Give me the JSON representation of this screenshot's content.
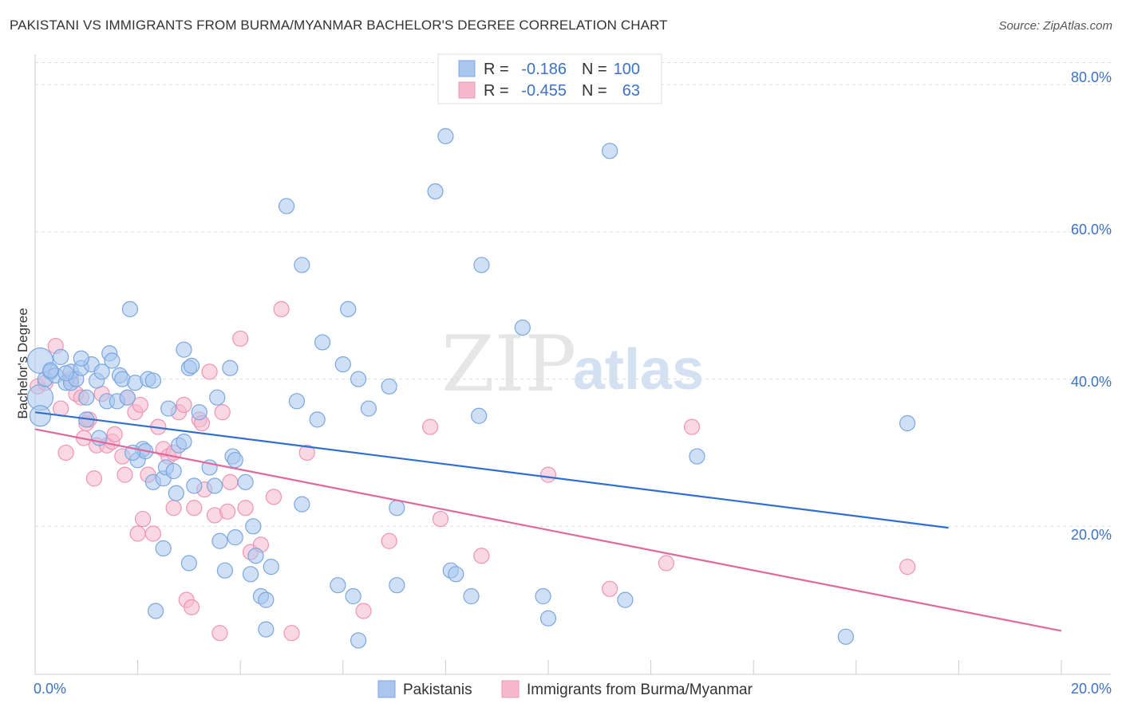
{
  "title": "PAKISTANI VS IMMIGRANTS FROM BURMA/MYANMAR BACHELOR'S DEGREE CORRELATION CHART",
  "source": "Source: ZipAtlas.com",
  "watermark": {
    "part1": "ZIP",
    "part2": "atlas"
  },
  "legend": {
    "r_label": "R =",
    "n_label": "N =",
    "rows": [
      {
        "r": "-0.186",
        "n": "100"
      },
      {
        "r": "-0.455",
        "n": "63"
      }
    ]
  },
  "bottom_legend": [
    "Pakistanis",
    "Immigrants from Burma/Myanmar"
  ],
  "colors": {
    "blue_fill": "#a8c6ee",
    "blue_stroke": "#7aa6e0",
    "blue_line": "#2f6fd0",
    "pink_fill": "#f5b8cc",
    "pink_stroke": "#ef94b4",
    "pink_line": "#e0689a",
    "grid": "#dddddd",
    "tick_text": "#3d72c4"
  },
  "chart_data": {
    "type": "scatter",
    "title": "PAKISTANI VS IMMIGRANTS FROM BURMA/MYANMAR BACHELOR'S DEGREE CORRELATION CHART",
    "xlabel": "",
    "ylabel": "Bachelor's Degree",
    "xlim": [
      0,
      20
    ],
    "ylim": [
      0,
      83
    ],
    "x_tick_labels": [
      "0.0%",
      "20.0%"
    ],
    "y_ticks": [
      20,
      40,
      60,
      80
    ],
    "y_tick_labels": [
      "20.0%",
      "40.0%",
      "60.0%",
      "80.0%"
    ],
    "grid": true,
    "series": [
      {
        "name": "Pakistanis",
        "R": -0.186,
        "N": 100,
        "trend": {
          "x": [
            0,
            17.8
          ],
          "y": [
            35.5,
            19.8
          ]
        },
        "points": [
          [
            0.1,
            42.5
          ],
          [
            0.1,
            37.5
          ],
          [
            0.1,
            35
          ],
          [
            0.2,
            40
          ],
          [
            0.3,
            41
          ],
          [
            0.4,
            40.5
          ],
          [
            0.6,
            39.5
          ],
          [
            0.5,
            43
          ],
          [
            0.7,
            39.5
          ],
          [
            0.7,
            41
          ],
          [
            0.8,
            40
          ],
          [
            0.9,
            41.5
          ],
          [
            1.1,
            42
          ],
          [
            1.2,
            39.8
          ],
          [
            1.3,
            41
          ],
          [
            1.4,
            37
          ],
          [
            1.45,
            43.5
          ],
          [
            1.5,
            42.5
          ],
          [
            1.6,
            37
          ],
          [
            1.65,
            40.5
          ],
          [
            1.7,
            40
          ],
          [
            1.8,
            37.5
          ],
          [
            1.85,
            49.5
          ],
          [
            1.95,
            39.5
          ],
          [
            2.2,
            40
          ],
          [
            2.3,
            39.8
          ],
          [
            2.1,
            30.5
          ],
          [
            2.0,
            29
          ],
          [
            2.15,
            30.2
          ],
          [
            2.3,
            26
          ],
          [
            2.35,
            8.5
          ],
          [
            2.5,
            26.5
          ],
          [
            2.55,
            28
          ],
          [
            2.6,
            36
          ],
          [
            2.7,
            27.5
          ],
          [
            2.75,
            24.5
          ],
          [
            2.8,
            31
          ],
          [
            2.9,
            31.5
          ],
          [
            2.9,
            44
          ],
          [
            3.0,
            41.5
          ],
          [
            3.05,
            41.8
          ],
          [
            2.5,
            17
          ],
          [
            3.1,
            25.5
          ],
          [
            3.2,
            35.5
          ],
          [
            3.4,
            28
          ],
          [
            3.5,
            25.5
          ],
          [
            3.55,
            37.5
          ],
          [
            3.6,
            18
          ],
          [
            3.7,
            14
          ],
          [
            3.8,
            41.5
          ],
          [
            3.85,
            29.5
          ],
          [
            3.9,
            29
          ],
          [
            3.9,
            18.5
          ],
          [
            4.1,
            26
          ],
          [
            4.2,
            13.5
          ],
          [
            4.25,
            20
          ],
          [
            4.3,
            16
          ],
          [
            4.4,
            10.5
          ],
          [
            4.5,
            10
          ],
          [
            4.6,
            14.5
          ],
          [
            4.5,
            6
          ],
          [
            4.9,
            63.5
          ],
          [
            5.1,
            37
          ],
          [
            5.2,
            55.5
          ],
          [
            5.2,
            23
          ],
          [
            5.5,
            34.5
          ],
          [
            5.6,
            45
          ],
          [
            5.9,
            12
          ],
          [
            6.0,
            42
          ],
          [
            6.1,
            49.5
          ],
          [
            6.2,
            10.5
          ],
          [
            6.3,
            40
          ],
          [
            6.3,
            4.5
          ],
          [
            6.5,
            36
          ],
          [
            6.9,
            39
          ],
          [
            7.05,
            22.5
          ],
          [
            7.05,
            12
          ],
          [
            7.8,
            65.5
          ],
          [
            8.0,
            73
          ],
          [
            8.1,
            14
          ],
          [
            8.2,
            13.5
          ],
          [
            8.5,
            10.5
          ],
          [
            8.65,
            35
          ],
          [
            8.7,
            55.5
          ],
          [
            9.5,
            47
          ],
          [
            9.9,
            10.5
          ],
          [
            10.0,
            7.5
          ],
          [
            11.2,
            71
          ],
          [
            11.5,
            10
          ],
          [
            12.9,
            29.5
          ],
          [
            15.8,
            5
          ],
          [
            17.0,
            34
          ],
          [
            1.0,
            34.5
          ],
          [
            1.25,
            32
          ],
          [
            1.9,
            30
          ],
          [
            1.0,
            37.5
          ],
          [
            3.0,
            15
          ],
          [
            0.6,
            40.8
          ],
          [
            0.9,
            42.8
          ],
          [
            0.3,
            41.2
          ]
        ]
      },
      {
        "name": "Immigrants from Burma/Myanmar",
        "R": -0.455,
        "N": 63,
        "trend": {
          "x": [
            0,
            20
          ],
          "y": [
            33.2,
            5.8
          ]
        },
        "points": [
          [
            0.05,
            39
          ],
          [
            0.2,
            39.5
          ],
          [
            0.4,
            44.5
          ],
          [
            0.5,
            36
          ],
          [
            0.6,
            30
          ],
          [
            0.7,
            40
          ],
          [
            0.8,
            38
          ],
          [
            0.9,
            37.5
          ],
          [
            0.95,
            32
          ],
          [
            1.0,
            34
          ],
          [
            1.05,
            34.5
          ],
          [
            1.15,
            26.5
          ],
          [
            1.2,
            31
          ],
          [
            1.3,
            38
          ],
          [
            1.4,
            31
          ],
          [
            1.5,
            31.5
          ],
          [
            1.55,
            32.5
          ],
          [
            1.7,
            29.5
          ],
          [
            1.75,
            27
          ],
          [
            1.8,
            37.5
          ],
          [
            1.95,
            35.5
          ],
          [
            2.0,
            19
          ],
          [
            2.05,
            36.5
          ],
          [
            2.1,
            21
          ],
          [
            2.2,
            27
          ],
          [
            2.3,
            19
          ],
          [
            2.4,
            33.5
          ],
          [
            2.5,
            30.5
          ],
          [
            2.6,
            29.5
          ],
          [
            2.7,
            30
          ],
          [
            2.8,
            35.5
          ],
          [
            2.9,
            36.5
          ],
          [
            2.95,
            10
          ],
          [
            3.05,
            9
          ],
          [
            3.1,
            22.5
          ],
          [
            3.2,
            34.5
          ],
          [
            3.25,
            34
          ],
          [
            3.3,
            25
          ],
          [
            3.4,
            41
          ],
          [
            3.5,
            21.5
          ],
          [
            3.6,
            5.5
          ],
          [
            3.65,
            35.5
          ],
          [
            3.75,
            22
          ],
          [
            3.8,
            26
          ],
          [
            4.0,
            45.5
          ],
          [
            4.1,
            22.5
          ],
          [
            4.2,
            16.5
          ],
          [
            4.4,
            17.5
          ],
          [
            4.65,
            24
          ],
          [
            4.8,
            49.5
          ],
          [
            5.0,
            5.5
          ],
          [
            5.3,
            30
          ],
          [
            6.4,
            8.5
          ],
          [
            6.9,
            18
          ],
          [
            7.7,
            33.5
          ],
          [
            7.9,
            21
          ],
          [
            8.7,
            16
          ],
          [
            10.0,
            27
          ],
          [
            11.2,
            11.5
          ],
          [
            12.3,
            15
          ],
          [
            12.8,
            33.5
          ],
          [
            17.0,
            14.5
          ],
          [
            2.7,
            22.5
          ]
        ]
      }
    ]
  }
}
